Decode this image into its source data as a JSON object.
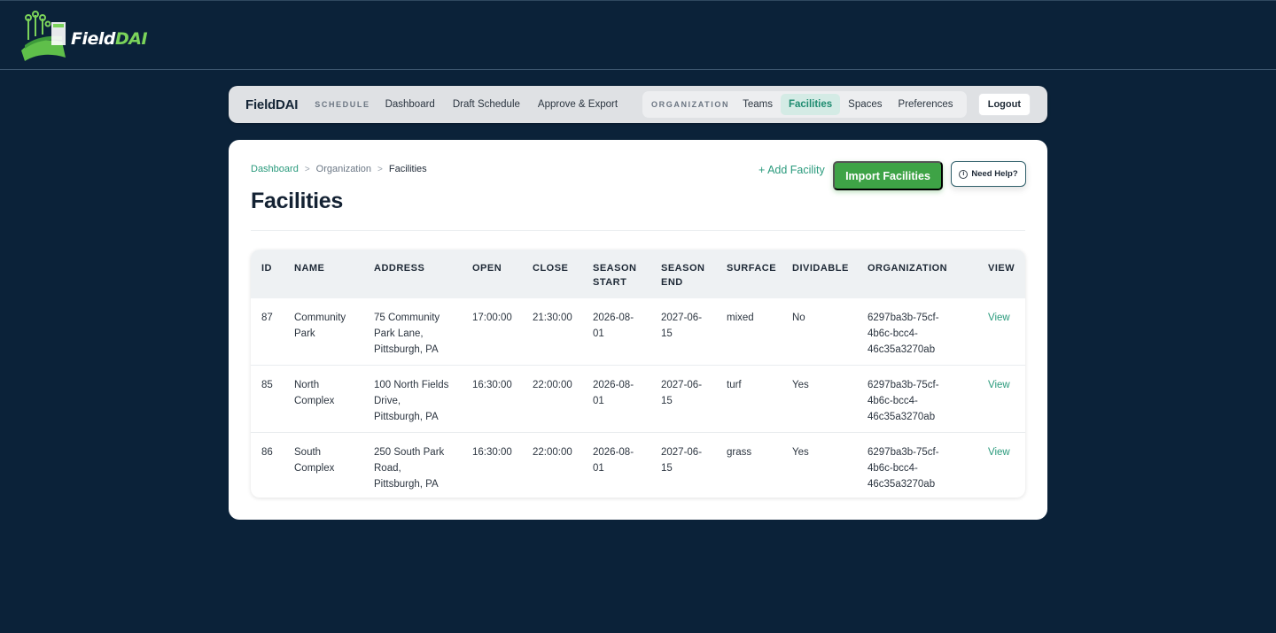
{
  "brand": {
    "name_main": "Field",
    "name_accent": "DAI",
    "logo_icon": "field-circuit-logo"
  },
  "nav": {
    "brand": "FieldDAI",
    "schedule_label": "SCHEDULE",
    "schedule_links": [
      "Dashboard",
      "Draft Schedule",
      "Approve & Export"
    ],
    "org_label": "ORGANIZATION",
    "org_links": [
      "Teams",
      "Facilities",
      "Spaces",
      "Preferences"
    ],
    "active": "Facilities",
    "logout": "Logout"
  },
  "breadcrumb": {
    "home": "Dashboard",
    "parent": "Organization",
    "current": "Facilities",
    "separator": ">"
  },
  "page": {
    "title": "Facilities",
    "add_label": "+ Add Facility",
    "import_label": "Import Facilities",
    "help_label": "Need Help?"
  },
  "table": {
    "headers": {
      "id": "ID",
      "name": "NAME",
      "address": "ADDRESS",
      "open": "OPEN",
      "close": "CLOSE",
      "season_start_1": "SEASON",
      "season_start_2": "START",
      "season_end_1": "SEASON",
      "season_end_2": "END",
      "surface": "SURFACE",
      "dividable": "DIVIDABLE",
      "organization": "ORGANIZATION",
      "view": "VIEW"
    },
    "rows": [
      {
        "id": "87",
        "name_l1": "Community",
        "name_l2": "Park",
        "addr_l1": "75 Community",
        "addr_l2": "Park Lane,",
        "addr_l3": "Pittsburgh, PA",
        "open": "17:00:00",
        "close": "21:30:00",
        "ss_l1": "2026-08-",
        "ss_l2": "01",
        "se_l1": "2027-06-",
        "se_l2": "15",
        "surface": "mixed",
        "dividable": "No",
        "org_l1": "6297ba3b-75cf-",
        "org_l2": "4b6c-bcc4-",
        "org_l3": "46c35a3270ab",
        "view": "View"
      },
      {
        "id": "85",
        "name_l1": "North",
        "name_l2": "Complex",
        "addr_l1": "100 North Fields",
        "addr_l2": "Drive,",
        "addr_l3": "Pittsburgh, PA",
        "open": "16:30:00",
        "close": "22:00:00",
        "ss_l1": "2026-08-",
        "ss_l2": "01",
        "se_l1": "2027-06-",
        "se_l2": "15",
        "surface": "turf",
        "dividable": "Yes",
        "org_l1": "6297ba3b-75cf-",
        "org_l2": "4b6c-bcc4-",
        "org_l3": "46c35a3270ab",
        "view": "View"
      },
      {
        "id": "86",
        "name_l1": "South",
        "name_l2": "Complex",
        "addr_l1": "250 South Park",
        "addr_l2": "Road,",
        "addr_l3": "Pittsburgh, PA",
        "open": "16:30:00",
        "close": "22:00:00",
        "ss_l1": "2026-08-",
        "ss_l2": "01",
        "se_l1": "2027-06-",
        "se_l2": "15",
        "surface": "grass",
        "dividable": "Yes",
        "org_l1": "6297ba3b-75cf-",
        "org_l2": "4b6c-bcc4-",
        "org_l3": "46c35a3270ab",
        "view": "View"
      }
    ]
  },
  "colors": {
    "background": "#0b2239",
    "accent": "#2a9a7c",
    "primary_button": "#3ea346"
  }
}
